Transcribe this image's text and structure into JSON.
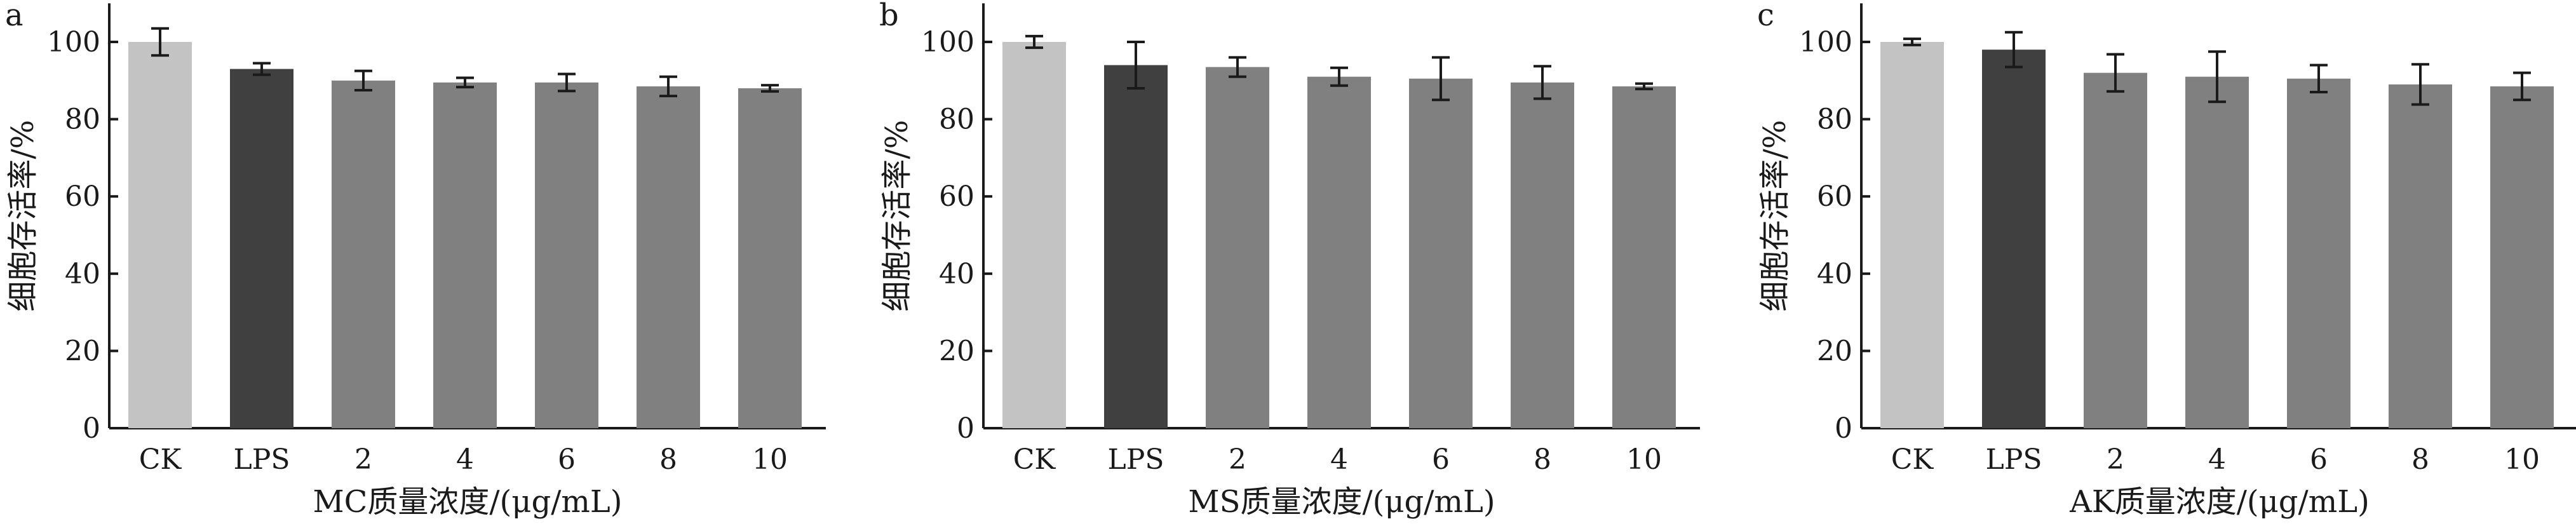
{
  "chart_data": [
    {
      "type": "bar",
      "panel_label": "a",
      "title": "",
      "xlabel": "MC质量浓度/(μg/mL)",
      "ylabel": "细胞存活率/%",
      "ylim": [
        0,
        110
      ],
      "yticks": [
        0,
        20,
        40,
        60,
        80,
        100
      ],
      "ytick_labels": [
        "0",
        "20",
        "40",
        "60",
        "80",
        "100"
      ],
      "grid": false,
      "legend": "none",
      "categories": [
        "CK",
        "LPS",
        "2",
        "4",
        "6",
        "8",
        "10"
      ],
      "values": [
        100,
        93,
        90,
        89.5,
        89.5,
        88.5,
        88
      ],
      "errors": [
        3.5,
        1.5,
        2.5,
        1.2,
        2.2,
        2.5,
        0.8
      ],
      "colors": [
        "#c3c3c3",
        "#404040",
        "#808080",
        "#808080",
        "#808080",
        "#808080",
        "#808080"
      ]
    },
    {
      "type": "bar",
      "panel_label": "b",
      "title": "",
      "xlabel": "MS质量浓度/(μg/mL)",
      "ylabel": "细胞存活率/%",
      "ylim": [
        0,
        110
      ],
      "yticks": [
        0,
        20,
        40,
        60,
        80,
        100
      ],
      "ytick_labels": [
        "0",
        "20",
        "40",
        "60",
        "80",
        "100"
      ],
      "grid": false,
      "legend": "none",
      "categories": [
        "CK",
        "LPS",
        "2",
        "4",
        "6",
        "8",
        "10"
      ],
      "values": [
        100,
        94,
        93.5,
        91,
        90.5,
        89.5,
        88.5
      ],
      "errors": [
        1.5,
        6,
        2.5,
        2.3,
        5.5,
        4.2,
        0.7
      ],
      "colors": [
        "#c3c3c3",
        "#404040",
        "#808080",
        "#808080",
        "#808080",
        "#808080",
        "#808080"
      ]
    },
    {
      "type": "bar",
      "panel_label": "c",
      "title": "",
      "xlabel": "AK质量浓度/(μg/mL)",
      "ylabel": "细胞存活率/%",
      "ylim": [
        0,
        110
      ],
      "yticks": [
        0,
        20,
        40,
        60,
        80,
        100
      ],
      "ytick_labels": [
        "0",
        "20",
        "40",
        "60",
        "80",
        "100"
      ],
      "grid": false,
      "legend": "none",
      "categories": [
        "CK",
        "LPS",
        "2",
        "4",
        "6",
        "8",
        "10"
      ],
      "values": [
        100,
        98,
        92,
        91,
        90.5,
        89,
        88.5
      ],
      "errors": [
        0.8,
        4.5,
        4.8,
        6.5,
        3.5,
        5.2,
        3.5
      ],
      "colors": [
        "#c3c3c3",
        "#404040",
        "#808080",
        "#808080",
        "#808080",
        "#808080",
        "#808080"
      ]
    }
  ]
}
